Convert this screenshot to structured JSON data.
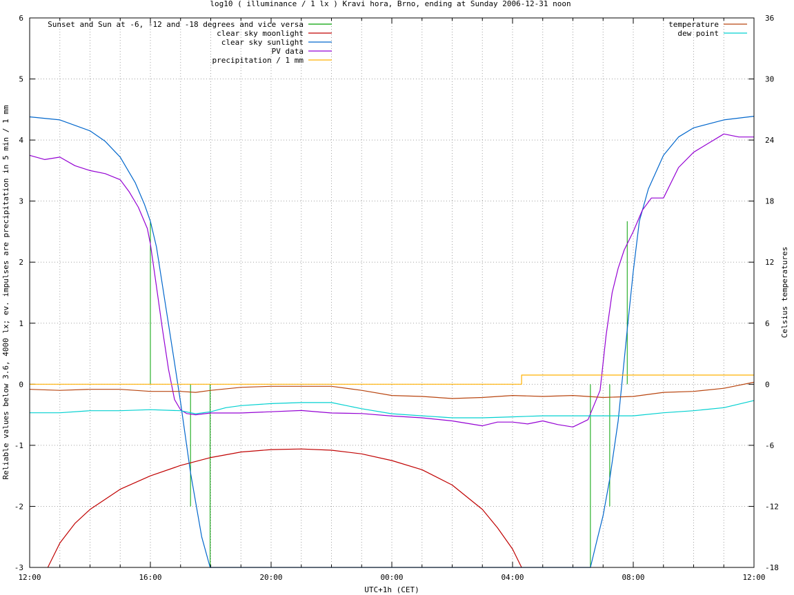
{
  "chart_data": {
    "type": "line",
    "title": "log10 ( illuminance / 1 lx ) Kravi hora, Brno, ending at Sunday 2006-12-31 noon",
    "xlabel": "UTC+1h (CET)",
    "ylabel": "Reliable values below 3.6, 4000 lx; ev. impulses are precipitation in 5 min / 1 mm",
    "y2label": "Celsius temperatures",
    "xlim_hours": [
      0,
      24
    ],
    "ylim": [
      -3,
      6
    ],
    "y2lim": [
      -18,
      36
    ],
    "x_tick_labels": [
      "12:00",
      "16:00",
      "20:00",
      "00:00",
      "04:00",
      "08:00",
      "12:00"
    ],
    "x_tick_hours": [
      0,
      4,
      8,
      12,
      16,
      20,
      24
    ],
    "y_ticks": [
      -3,
      -2,
      -1,
      0,
      1,
      2,
      3,
      4,
      5,
      6
    ],
    "y2_ticks": [
      -18,
      -12,
      -6,
      0,
      6,
      12,
      18,
      24,
      30,
      36
    ],
    "grid": "dotted, vertical every 1 hour, horizontal at left-axis ticks",
    "legend_left_placement": "top-left",
    "legend_right_placement": "top-right",
    "legend_left": [
      {
        "label": "Sunset and Sun at -6, -12 and -18 degrees and vice versa",
        "color": "#00a000"
      },
      {
        "label": "clear sky moonlight",
        "color": "#c00000"
      },
      {
        "label": "clear sky sunlight",
        "color": "#0066cc"
      },
      {
        "label": "PV data",
        "color": "#9400d3"
      },
      {
        "label": "precipitation / 1 mm",
        "color": "#ffb000"
      }
    ],
    "legend_right": [
      {
        "label": "temperature",
        "color": "#b8440e"
      },
      {
        "label": "dew point",
        "color": "#00d0d0"
      }
    ],
    "series": [
      {
        "name": "Sunset and Sun at -6, -12 and -18 degrees and vice versa",
        "color": "#00a000",
        "kind": "impulses",
        "x": [
          4.0,
          5.33,
          5.98,
          18.58,
          19.22,
          19.8
        ],
        "y_top": [
          2.67,
          0,
          0,
          0,
          0,
          2.67
        ],
        "y_bottom": [
          0,
          -2.0,
          -3.0,
          -3.0,
          -2.0,
          0
        ]
      },
      {
        "name": "clear sky moonlight",
        "color": "#c00000",
        "x": [
          0.6,
          1.0,
          1.5,
          2.0,
          3.0,
          4.0,
          5.0,
          6.0,
          7.0,
          8.0,
          9.0,
          10.0,
          11.0,
          12.0,
          13.0,
          14.0,
          15.0,
          15.5,
          16.0,
          16.3
        ],
        "y": [
          -3.0,
          -2.6,
          -2.28,
          -2.05,
          -1.72,
          -1.5,
          -1.33,
          -1.2,
          -1.11,
          -1.07,
          -1.06,
          -1.08,
          -1.14,
          -1.25,
          -1.4,
          -1.65,
          -2.05,
          -2.35,
          -2.7,
          -3.0
        ]
      },
      {
        "name": "clear sky sunlight",
        "color": "#0066cc",
        "x": [
          0.0,
          1.0,
          2.0,
          2.5,
          3.0,
          3.5,
          3.8,
          4.0,
          4.2,
          4.5,
          4.8,
          5.0,
          5.33,
          5.7,
          5.98,
          18.58,
          18.8,
          19.0,
          19.22,
          19.5,
          19.8,
          20.0,
          20.2,
          20.5,
          21.0,
          21.5,
          22.0,
          23.0,
          24.0
        ],
        "y": [
          4.38,
          4.33,
          4.15,
          3.98,
          3.72,
          3.3,
          2.95,
          2.67,
          2.25,
          1.3,
          0.35,
          -0.3,
          -1.45,
          -2.5,
          -3.0,
          -3.0,
          -2.55,
          -2.15,
          -1.55,
          -0.6,
          0.9,
          1.85,
          2.67,
          3.2,
          3.75,
          4.05,
          4.2,
          4.33,
          4.39
        ]
      },
      {
        "name": "PV data",
        "color": "#9400d3",
        "x": [
          0.0,
          0.5,
          1.0,
          1.5,
          2.0,
          2.5,
          3.0,
          3.3,
          3.6,
          3.9,
          4.0,
          4.2,
          4.4,
          4.6,
          4.8,
          5.0,
          5.2,
          5.5,
          6.0,
          7.0,
          8.0,
          9.0,
          10.0,
          11.0,
          12.0,
          13.0,
          14.0,
          15.0,
          15.5,
          16.0,
          16.5,
          17.0,
          17.5,
          18.0,
          18.5,
          18.9,
          19.1,
          19.3,
          19.5,
          19.7,
          20.0,
          20.3,
          20.6,
          21.0,
          21.5,
          22.0,
          22.5,
          23.0,
          23.5,
          24.0
        ],
        "y": [
          3.75,
          3.68,
          3.72,
          3.58,
          3.5,
          3.45,
          3.35,
          3.15,
          2.9,
          2.55,
          2.3,
          1.6,
          0.9,
          0.25,
          -0.25,
          -0.42,
          -0.48,
          -0.5,
          -0.47,
          -0.47,
          -0.45,
          -0.43,
          -0.47,
          -0.48,
          -0.52,
          -0.55,
          -0.6,
          -0.68,
          -0.62,
          -0.62,
          -0.65,
          -0.6,
          -0.66,
          -0.7,
          -0.58,
          -0.1,
          0.8,
          1.5,
          1.9,
          2.2,
          2.5,
          2.85,
          3.05,
          3.05,
          3.55,
          3.8,
          3.95,
          4.1,
          4.05,
          4.05
        ]
      },
      {
        "name": "precipitation / 1 mm",
        "color": "#ffb000",
        "x": [
          0.0,
          16.3,
          16.3,
          24.0
        ],
        "y": [
          0.0,
          0.0,
          0.15,
          0.15
        ]
      },
      {
        "name": "temperature",
        "color": "#b8440e",
        "axis": "right",
        "x": [
          0.0,
          1.0,
          2.0,
          3.0,
          4.0,
          5.0,
          5.5,
          6.0,
          7.0,
          8.0,
          9.0,
          10.0,
          11.0,
          12.0,
          13.0,
          14.0,
          15.0,
          16.0,
          17.0,
          18.0,
          19.0,
          20.0,
          21.0,
          22.0,
          23.0,
          24.0
        ],
        "y": [
          -0.5,
          -0.6,
          -0.5,
          -0.5,
          -0.7,
          -0.7,
          -0.8,
          -0.6,
          -0.3,
          -0.2,
          -0.2,
          -0.2,
          -0.6,
          -1.1,
          -1.2,
          -1.4,
          -1.3,
          -1.1,
          -1.2,
          -1.1,
          -1.3,
          -1.2,
          -0.8,
          -0.7,
          -0.4,
          0.2
        ]
      },
      {
        "name": "dew point",
        "color": "#00d0d0",
        "axis": "right",
        "x": [
          0.0,
          1.0,
          2.0,
          3.0,
          4.0,
          5.0,
          5.5,
          6.0,
          6.5,
          7.0,
          8.0,
          9.0,
          10.0,
          11.0,
          12.0,
          13.0,
          14.0,
          15.0,
          16.0,
          17.0,
          18.0,
          19.0,
          20.0,
          21.0,
          22.0,
          23.0,
          24.0
        ],
        "y": [
          -2.8,
          -2.8,
          -2.6,
          -2.6,
          -2.5,
          -2.6,
          -2.9,
          -2.7,
          -2.3,
          -2.1,
          -1.9,
          -1.8,
          -1.8,
          -2.4,
          -2.9,
          -3.1,
          -3.3,
          -3.3,
          -3.2,
          -3.1,
          -3.1,
          -3.1,
          -3.1,
          -2.8,
          -2.6,
          -2.3,
          -1.6
        ]
      }
    ]
  }
}
